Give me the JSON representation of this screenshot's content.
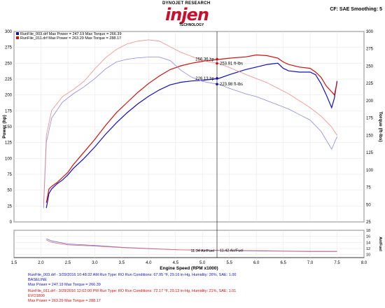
{
  "header": {
    "brand_top": "DYNOJET RESEARCH",
    "brand_logo": "injen",
    "brand_sub": "TECHNOLOGY",
    "cf_smoothing": "CF: SAE  Smoothing: 5"
  },
  "legend": [
    {
      "text": "RunFile_003.drf  Max Power = 247.19   Max Torque = 266.39",
      "color": "#1010c0"
    },
    {
      "text": "RunFile_011.drf  Max Power = 263.29   Max Torque = 288.17",
      "color": "#d01010"
    }
  ],
  "footer": {
    "run1_line1": "RunFile_003.drf - 3/29/2016 10:48:32 AM  Run Type: RO  Run Conditions: 67.95 °F, 29.16 in-Hg,  Humidity:  26%, SAE: 1.00",
    "run1_line2": "BASELINE",
    "run1_line3": "Max Power = 247.19  Max Torque = 266.39",
    "run2_line1": "RunFile_011.drf - 3/29/2016 12:02:00 PM  Run Type: RO  Run Conditions: 72.17 °F, 29.13 in-Hg,  Humidity:  21%, SAE: 1.01",
    "run2_line2": "EVO1800",
    "run2_line3": "Max Power = 263.29  Max Torque = 288.17"
  },
  "colors": {
    "run1": "#1010c0",
    "run2": "#d01010"
  },
  "chart_data": [
    {
      "type": "line",
      "xlabel": "Engine Speed (RPM x1000)",
      "ylabel": "Power (hp)",
      "ylabel_right": "Torque (ft-lbs)",
      "xlim": [
        1.5,
        8.0
      ],
      "ylim": [
        0,
        300
      ],
      "ylim_right": [
        25,
        300
      ],
      "x_ticks": [
        "1.5",
        "2.0",
        "2.5",
        "3.0",
        "3.5",
        "4.0",
        "4.5",
        "5.0",
        "5.5",
        "6.0",
        "6.5",
        "7.0",
        "7.5",
        "8.0"
      ],
      "y_ticks": [
        "0",
        "25",
        "50",
        "75",
        "100",
        "125",
        "150",
        "175",
        "200",
        "225",
        "250",
        "275",
        "300"
      ],
      "y_ticks_right": [
        "25",
        "50",
        "75",
        "100",
        "125",
        "150",
        "175",
        "200",
        "225",
        "250",
        "275",
        "300"
      ],
      "grid": true,
      "cursor_x": 5.27,
      "annotations": [
        {
          "text": "256.36 hp",
          "x": 5.27,
          "y": 256.36,
          "color": "#d01010",
          "side": "left"
        },
        {
          "text": "253.91 ft-lbs",
          "x": 5.27,
          "y": 253.91,
          "color": "#d01010",
          "side": "right"
        },
        {
          "text": "226.13 hp",
          "x": 5.27,
          "y": 226.13,
          "color": "#1010c0",
          "side": "left"
        },
        {
          "text": "223.98 ft-lbs",
          "x": 5.27,
          "y": 223.98,
          "color": "#1010c0",
          "side": "right"
        }
      ],
      "series": [
        {
          "name": "RunFile_003.drf",
          "measure": "power",
          "axis": "left",
          "color": "#1010c0",
          "x": [
            2.1,
            2.15,
            2.2,
            2.3,
            2.4,
            2.5,
            2.6,
            2.8,
            3.0,
            3.2,
            3.4,
            3.6,
            3.8,
            4.0,
            4.2,
            4.4,
            4.6,
            4.8,
            5.0,
            5.2,
            5.3,
            5.5,
            5.8,
            6.0,
            6.2,
            6.4,
            6.5,
            6.6,
            6.8,
            7.0,
            7.1,
            7.2,
            7.3,
            7.4,
            7.45,
            7.5
          ],
          "y": [
            22,
            45,
            52,
            60,
            66,
            74,
            84,
            100,
            118,
            138,
            156,
            172,
            186,
            198,
            208,
            216,
            220,
            222,
            223,
            225,
            226,
            232,
            240,
            244,
            248,
            250,
            242,
            238,
            236,
            236,
            232,
            218,
            200,
            180,
            195,
            222
          ]
        },
        {
          "name": "RunFile_011.drf",
          "measure": "power",
          "axis": "left",
          "color": "#d01010",
          "x": [
            2.1,
            2.15,
            2.2,
            2.3,
            2.4,
            2.5,
            2.6,
            2.8,
            3.0,
            3.2,
            3.4,
            3.6,
            3.8,
            4.0,
            4.2,
            4.4,
            4.6,
            4.8,
            5.0,
            5.2,
            5.3,
            5.5,
            5.8,
            6.0,
            6.2,
            6.4,
            6.5,
            6.6,
            6.8,
            7.0,
            7.1,
            7.2,
            7.3,
            7.4,
            7.45,
            7.5
          ],
          "y": [
            30,
            52,
            56,
            62,
            70,
            78,
            90,
            110,
            130,
            152,
            172,
            188,
            204,
            218,
            230,
            240,
            246,
            250,
            253,
            255,
            256,
            258,
            260,
            263,
            262,
            258,
            252,
            248,
            244,
            242,
            236,
            228,
            214,
            205,
            200,
            220
          ]
        },
        {
          "name": "RunFile_003.drf",
          "measure": "torque",
          "axis": "right",
          "color": "#8a8ae0",
          "x": [
            2.05,
            2.1,
            2.2,
            2.4,
            2.6,
            2.8,
            3.0,
            3.2,
            3.4,
            3.6,
            3.8,
            4.0,
            4.2,
            4.4,
            4.6,
            4.8,
            5.0,
            5.2,
            5.3,
            5.5,
            5.8,
            6.0,
            6.2,
            6.4,
            6.6,
            6.8,
            7.0,
            7.2,
            7.4,
            7.5
          ],
          "y": [
            45,
            140,
            175,
            198,
            210,
            220,
            232,
            246,
            256,
            260,
            262,
            263,
            263,
            258,
            244,
            234,
            228,
            225,
            224,
            218,
            210,
            206,
            200,
            194,
            188,
            180,
            172,
            156,
            130,
            148
          ]
        },
        {
          "name": "RunFile_011.drf",
          "measure": "torque",
          "axis": "right",
          "color": "#f08a8a",
          "x": [
            2.05,
            2.1,
            2.2,
            2.4,
            2.6,
            2.8,
            3.0,
            3.2,
            3.4,
            3.6,
            3.8,
            4.0,
            4.2,
            4.4,
            4.6,
            4.8,
            5.0,
            5.2,
            5.3,
            5.5,
            5.8,
            6.0,
            6.2,
            6.4,
            6.6,
            6.8,
            7.0,
            7.2,
            7.4,
            7.5
          ],
          "y": [
            50,
            150,
            186,
            206,
            216,
            228,
            246,
            262,
            274,
            282,
            286,
            288,
            286,
            278,
            270,
            264,
            258,
            255,
            254,
            248,
            238,
            232,
            226,
            218,
            210,
            200,
            190,
            178,
            162,
            150
          ]
        }
      ]
    },
    {
      "type": "line",
      "ylabel_right": "Air/Fuel",
      "xlim": [
        1.5,
        8.0
      ],
      "ylim": [
        9,
        18
      ],
      "y_ticks_right": [
        "10",
        "12",
        "14",
        "16",
        "18"
      ],
      "annotations": [
        {
          "text": "11.34 Air/Fuel",
          "x": 5.27,
          "y": 11.34,
          "color": "#1010c0",
          "side": "left"
        },
        {
          "text": "11.42 Air/Fuel",
          "x": 5.27,
          "y": 11.42,
          "color": "#d01010",
          "side": "right"
        }
      ],
      "series": [
        {
          "name": "RunFile_003.drf",
          "measure": "afr",
          "color": "#6a6ae0",
          "x": [
            2.1,
            2.2,
            2.5,
            3.0,
            3.5,
            4.0,
            4.5,
            5.0,
            5.27,
            5.5,
            6.0,
            6.5,
            7.0,
            7.5
          ],
          "y": [
            15.2,
            14.5,
            13.5,
            13.0,
            12.4,
            12.0,
            11.6,
            11.4,
            11.34,
            11.3,
            11.2,
            11.1,
            11.0,
            11.0
          ]
        },
        {
          "name": "RunFile_011.drf",
          "measure": "afr",
          "color": "#e07070",
          "x": [
            2.1,
            2.2,
            2.5,
            3.0,
            3.5,
            4.0,
            4.5,
            5.0,
            5.27,
            5.5,
            6.0,
            6.5,
            7.0,
            7.5
          ],
          "y": [
            14.8,
            14.0,
            13.2,
            12.8,
            12.3,
            11.9,
            11.6,
            11.5,
            11.42,
            11.4,
            11.3,
            11.2,
            11.1,
            11.1
          ]
        }
      ]
    }
  ]
}
